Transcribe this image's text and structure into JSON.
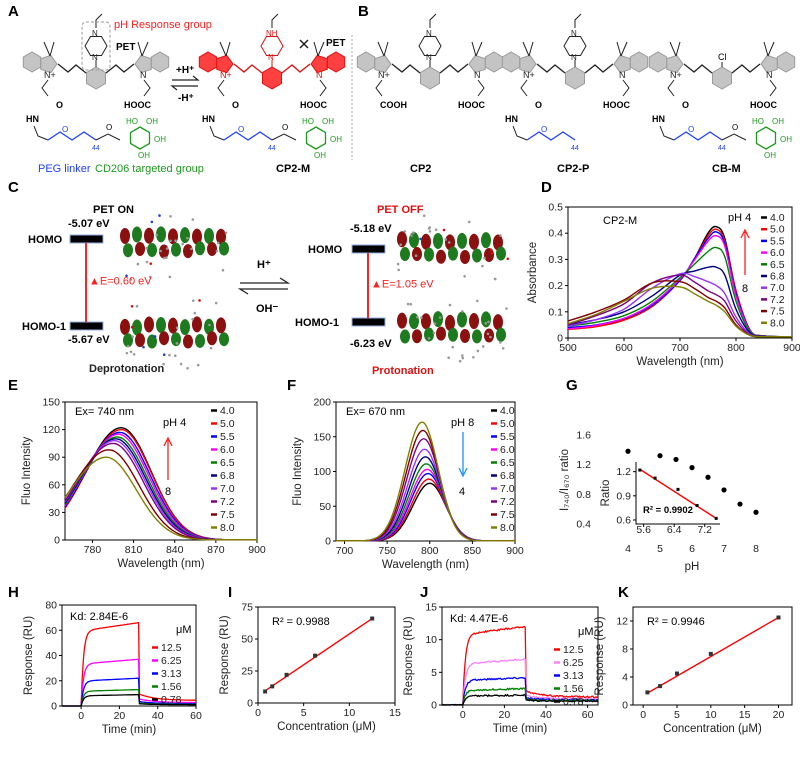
{
  "panel_labels": [
    "A",
    "B",
    "C",
    "D",
    "E",
    "F",
    "G",
    "H",
    "I",
    "J",
    "K"
  ],
  "panelA": {
    "ph_response_group": "pH Response group",
    "pet_left": "PET",
    "pet_right": "PET",
    "forward": "+H⁺",
    "backward": "-H⁺",
    "peg_linker": "PEG linker",
    "cd206_group": "CD206 targeted group",
    "cp2m_label": "CP2-M",
    "atoms": {
      "N": "N",
      "Nplus": "N+",
      "NH": "NH",
      "HOOC": "HOOC",
      "COOH": "COOH",
      "HN": "HN",
      "O": "O",
      "OH": "OH",
      "HO": "HO",
      "n44": "44",
      "Cl": "Cl"
    },
    "colors": {
      "peg": "#1f3fff",
      "cd206": "#1e9a1e",
      "protonated": "#ff2020",
      "dye": "#bdbdbd"
    }
  },
  "panelB": {
    "labels": [
      "CP2",
      "CP2-P",
      "CB-M"
    ]
  },
  "panelC": {
    "pet_on": "PET ON",
    "pet_off": "PET OFF",
    "left": {
      "homo": "HOMO",
      "homo_energy": "-5.07 eV",
      "gap": "▲E=0.60 eV",
      "homo1": "HOMO-1",
      "homo1_energy": "-5.67 eV",
      "state": "Deprotonation"
    },
    "right": {
      "homo": "HOMO",
      "homo_energy": "-5.18 eV",
      "gap": "▲E=1.05 eV",
      "homo1": "HOMO-1",
      "homo1_energy": "-6.23 eV",
      "state": "Protonation"
    },
    "forward": "H⁺",
    "backward": "OH⁻"
  },
  "chart_data": [
    {
      "panel": "D",
      "type": "line",
      "annotation": "CP2-M",
      "arrow_top": "pH 4",
      "arrow_bottom": "8",
      "xlabel": "Wavelength (nm)",
      "ylabel": "Absorbance",
      "xlim": [
        500,
        900
      ],
      "ylim": [
        0,
        0.5
      ],
      "xticks": [
        500,
        600,
        700,
        800,
        900
      ],
      "yticks": [
        0,
        0.1,
        0.2,
        0.3,
        0.4,
        0.5
      ],
      "legend_placement": "right",
      "x": [
        500,
        550,
        600,
        650,
        700,
        725,
        750,
        765,
        780,
        800,
        825,
        850,
        900
      ],
      "series": [
        {
          "name": "4.0",
          "color": "#000000",
          "values": [
            0.035,
            0.045,
            0.07,
            0.12,
            0.22,
            0.3,
            0.4,
            0.425,
            0.38,
            0.18,
            0.03,
            0.008,
            0.005
          ]
        },
        {
          "name": "5.0",
          "color": "#ff0000",
          "values": [
            0.033,
            0.043,
            0.068,
            0.12,
            0.22,
            0.3,
            0.39,
            0.415,
            0.37,
            0.18,
            0.03,
            0.008,
            0.005
          ]
        },
        {
          "name": "5.5",
          "color": "#0000ff",
          "values": [
            0.04,
            0.05,
            0.075,
            0.125,
            0.22,
            0.3,
            0.38,
            0.405,
            0.36,
            0.17,
            0.03,
            0.008,
            0.005
          ]
        },
        {
          "name": "6.0",
          "color": "#ff00ff",
          "values": [
            0.035,
            0.048,
            0.075,
            0.13,
            0.225,
            0.295,
            0.37,
            0.39,
            0.35,
            0.16,
            0.028,
            0.008,
            0.005
          ]
        },
        {
          "name": "6.5",
          "color": "#008000",
          "values": [
            0.045,
            0.06,
            0.085,
            0.14,
            0.23,
            0.28,
            0.33,
            0.345,
            0.31,
            0.14,
            0.025,
            0.008,
            0.005
          ]
        },
        {
          "name": "6.8",
          "color": "#000080",
          "values": [
            0.05,
            0.07,
            0.1,
            0.16,
            0.24,
            0.255,
            0.27,
            0.27,
            0.24,
            0.11,
            0.02,
            0.007,
            0.005
          ]
        },
        {
          "name": "7.0",
          "color": "#9933ff",
          "values": [
            0.045,
            0.07,
            0.11,
            0.19,
            0.245,
            0.235,
            0.215,
            0.2,
            0.17,
            0.08,
            0.015,
            0.006,
            0.005
          ]
        },
        {
          "name": "7.2",
          "color": "#800080",
          "values": [
            0.05,
            0.085,
            0.13,
            0.21,
            0.24,
            0.215,
            0.18,
            0.165,
            0.14,
            0.065,
            0.012,
            0.006,
            0.005
          ]
        },
        {
          "name": "7.5",
          "color": "#800000",
          "values": [
            0.065,
            0.1,
            0.145,
            0.21,
            0.215,
            0.19,
            0.155,
            0.14,
            0.115,
            0.05,
            0.01,
            0.005,
            0.005
          ]
        },
        {
          "name": "8.0",
          "color": "#808000",
          "values": [
            0.055,
            0.09,
            0.14,
            0.19,
            0.195,
            0.17,
            0.14,
            0.125,
            0.1,
            0.045,
            0.01,
            0.005,
            0.005
          ]
        }
      ]
    },
    {
      "panel": "E",
      "type": "line",
      "annotation": "Ex= 740 nm",
      "arrow_top": "pH 4",
      "arrow_bottom": "8",
      "xlabel": "Wavelength (nm)",
      "ylabel": "Fluo Intensity",
      "xlim": [
        760,
        900
      ],
      "ylim": [
        0,
        150
      ],
      "xticks": [
        780,
        810,
        840,
        870,
        900
      ],
      "yticks": [
        0,
        30,
        60,
        90,
        120,
        150
      ],
      "legend_placement": "right",
      "series": [
        {
          "name": "4.0",
          "color": "#000000",
          "peak_wavelength": 801,
          "peak_value": 122
        },
        {
          "name": "5.0",
          "color": "#ff0000",
          "peak_wavelength": 801,
          "peak_value": 120
        },
        {
          "name": "5.5",
          "color": "#0000ff",
          "peak_wavelength": 800,
          "peak_value": 117
        },
        {
          "name": "6.0",
          "color": "#ff00ff",
          "peak_wavelength": 799,
          "peak_value": 115
        },
        {
          "name": "6.5",
          "color": "#008000",
          "peak_wavelength": 798,
          "peak_value": 112
        },
        {
          "name": "6.8",
          "color": "#000080",
          "peak_wavelength": 797,
          "peak_value": 110
        },
        {
          "name": "7.0",
          "color": "#9933ff",
          "peak_wavelength": 796,
          "peak_value": 108
        },
        {
          "name": "7.2",
          "color": "#800080",
          "peak_wavelength": 795,
          "peak_value": 105
        },
        {
          "name": "7.5",
          "color": "#800000",
          "peak_wavelength": 792,
          "peak_value": 98
        },
        {
          "name": "8.0",
          "color": "#808000",
          "peak_wavelength": 790,
          "peak_value": 90
        }
      ]
    },
    {
      "panel": "F",
      "type": "line",
      "annotation": "Ex= 670 nm",
      "arrow_top": "pH 8",
      "arrow_bottom": "4",
      "xlabel": "Wavelength (nm)",
      "ylabel": "Fluo Intensity",
      "xlim": [
        690,
        900
      ],
      "ylim": [
        0,
        200
      ],
      "xticks": [
        700,
        750,
        800,
        850,
        900
      ],
      "yticks": [
        0,
        50,
        100,
        150,
        200
      ],
      "legend_placement": "right",
      "series": [
        {
          "name": "4.0",
          "color": "#000000",
          "peak_wavelength": 800,
          "peak_value": 83
        },
        {
          "name": "5.0",
          "color": "#ff0000",
          "peak_wavelength": 799,
          "peak_value": 89
        },
        {
          "name": "5.5",
          "color": "#0000ff",
          "peak_wavelength": 798,
          "peak_value": 97
        },
        {
          "name": "6.0",
          "color": "#ff00ff",
          "peak_wavelength": 797,
          "peak_value": 103
        },
        {
          "name": "6.5",
          "color": "#008000",
          "peak_wavelength": 796,
          "peak_value": 111
        },
        {
          "name": "6.8",
          "color": "#000080",
          "peak_wavelength": 795,
          "peak_value": 121
        },
        {
          "name": "7.0",
          "color": "#9933ff",
          "peak_wavelength": 794,
          "peak_value": 132
        },
        {
          "name": "7.2",
          "color": "#800080",
          "peak_wavelength": 793,
          "peak_value": 147
        },
        {
          "name": "7.5",
          "color": "#800000",
          "peak_wavelength": 792,
          "peak_value": 159
        },
        {
          "name": "8.0",
          "color": "#808000",
          "peak_wavelength": 791,
          "peak_value": 171
        }
      ]
    },
    {
      "panel": "G",
      "type": "scatter",
      "xlabel": "pH",
      "ylabel": "I₇₄₀/I₆₇₀ ratio",
      "xlim": [
        3,
        9
      ],
      "ylim": [
        0.2,
        1.8
      ],
      "xticks": [
        4,
        5,
        6,
        7,
        8
      ],
      "yticks": [
        0.4,
        0.8,
        1.2,
        1.6
      ],
      "x": [
        4,
        5,
        5.5,
        6,
        6.5,
        7,
        7.5,
        8
      ],
      "y": [
        1.38,
        1.32,
        1.27,
        1.16,
        1.03,
        0.86,
        0.67,
        0.56
      ],
      "inset": {
        "type": "scatter",
        "ylabel": "Ratio",
        "annotation": "R² = 0.9902",
        "xlim": [
          5.4,
          7.6
        ],
        "ylim": [
          0.55,
          1.32
        ],
        "xticks": [
          5.6,
          6.4,
          7.2
        ],
        "yticks": [
          0.6,
          0.9,
          1.2
        ],
        "x": [
          5.5,
          5.9,
          6.5,
          7.0,
          7.5
        ],
        "y": [
          1.22,
          1.12,
          0.98,
          0.78,
          0.62
        ],
        "fit": {
          "x": [
            5.5,
            7.5
          ],
          "y": [
            1.23,
            0.62
          ],
          "color": "#ff0000"
        }
      }
    },
    {
      "panel": "H",
      "type": "line",
      "annotation": "Kd: 2.84E-6",
      "legend_title": "μM",
      "xlabel": "Time (min)",
      "ylabel": "Response (RU)",
      "xlim": [
        -10,
        60
      ],
      "ylim": [
        0,
        80
      ],
      "xticks": [
        0,
        20,
        40,
        60
      ],
      "yticks": [
        0,
        20,
        40,
        60,
        80
      ],
      "legend_placement": "right",
      "series": [
        {
          "name": "12.5",
          "color": "#ff0000",
          "plateau": 66
        },
        {
          "name": "6.25",
          "color": "#ff00ff",
          "plateau": 37
        },
        {
          "name": "3.13",
          "color": "#0000ff",
          "plateau": 22
        },
        {
          "name": "1.56",
          "color": "#008000",
          "plateau": 13
        },
        {
          "name": "0.78",
          "color": "#000000",
          "plateau": 9
        }
      ]
    },
    {
      "panel": "I",
      "type": "scatter",
      "annotation": "R² = 0.9988",
      "xlabel": "Concentration (μM)",
      "ylabel": "Response (RU)",
      "xlim": [
        0,
        15
      ],
      "ylim": [
        0,
        75
      ],
      "xticks": [
        0,
        5,
        10,
        15
      ],
      "yticks": [
        0,
        25,
        50,
        75
      ],
      "x": [
        0.78,
        1.56,
        3.13,
        6.25,
        12.5
      ],
      "y": [
        9,
        13,
        22,
        37,
        66
      ],
      "fit": {
        "x": [
          0.78,
          12.5
        ],
        "y": [
          9.5,
          66
        ],
        "color": "#ff0000"
      }
    },
    {
      "panel": "J",
      "type": "line",
      "annotation": "Kd: 4.47E-6",
      "legend_title": "μM",
      "xlabel": "Time (min)",
      "ylabel": "Response (RU)",
      "xlim": [
        -10,
        65
      ],
      "ylim": [
        0,
        15
      ],
      "xticks": [
        0,
        20,
        40,
        60
      ],
      "yticks": [
        0,
        5,
        10,
        15
      ],
      "legend_placement": "right",
      "series": [
        {
          "name": "12.5",
          "color": "#ff0000",
          "plateau": 12
        },
        {
          "name": "6.25",
          "color": "#ff80ff",
          "plateau": 7
        },
        {
          "name": "3.13",
          "color": "#0000ff",
          "plateau": 4.2
        },
        {
          "name": "1.56",
          "color": "#008000",
          "plateau": 2.5
        },
        {
          "name": "0.78",
          "color": "#000000",
          "plateau": 1.5
        }
      ]
    },
    {
      "panel": "K",
      "type": "scatter",
      "annotation": "R² = 0.9946",
      "xlabel": "Concentration (μM)",
      "ylabel": "Response (RU)",
      "xlim": [
        -1.5,
        22
      ],
      "ylim": [
        0,
        14
      ],
      "xticks": [
        0,
        5,
        10,
        15,
        20
      ],
      "yticks": [
        0,
        4,
        8,
        12
      ],
      "x": [
        0.625,
        2.5,
        5,
        10,
        20
      ],
      "y": [
        1.8,
        2.7,
        4.5,
        7.3,
        12.5
      ],
      "fit": {
        "x": [
          0.625,
          20
        ],
        "y": [
          1.7,
          12.5
        ],
        "color": "#ff0000"
      }
    }
  ]
}
